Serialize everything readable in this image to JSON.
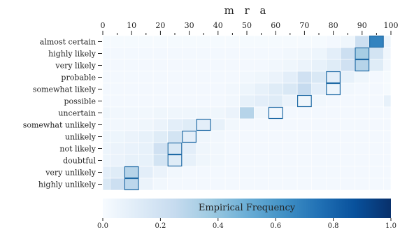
{
  "chart_data": {
    "type": "heatmap",
    "title": "m r a",
    "x_axis": {
      "position": "top",
      "ticks": [
        0,
        10,
        20,
        30,
        40,
        50,
        60,
        70,
        80,
        90,
        100
      ],
      "tick_labels": [
        "0",
        "10",
        "20",
        "30",
        "40",
        "50",
        "60",
        "70",
        "80",
        "90",
        "100"
      ],
      "range": [
        0,
        100
      ],
      "bin_width": 5
    },
    "rows": [
      "almost certain",
      "highly likely",
      "very likely",
      "probable",
      "somewhat likely",
      "possible",
      "uncertain",
      "somewhat unlikely",
      "unlikely",
      "not likely",
      "doubtful",
      "very unlikely",
      "highly unlikely"
    ],
    "bins": [
      0,
      5,
      10,
      15,
      20,
      25,
      30,
      35,
      40,
      45,
      50,
      55,
      60,
      65,
      70,
      75,
      80,
      85,
      90,
      95,
      100
    ],
    "values": [
      [
        0.01,
        0.01,
        0.01,
        0.01,
        0.01,
        0.01,
        0.01,
        0.01,
        0.01,
        0.01,
        0.01,
        0.01,
        0.01,
        0.01,
        0.01,
        0.01,
        0.02,
        0.04,
        0.22,
        0.68,
        0.05
      ],
      [
        0.02,
        0.02,
        0.02,
        0.02,
        0.02,
        0.02,
        0.02,
        0.02,
        0.02,
        0.02,
        0.02,
        0.02,
        0.02,
        0.03,
        0.04,
        0.05,
        0.1,
        0.22,
        0.35,
        0.18,
        0.04
      ],
      [
        0.02,
        0.02,
        0.02,
        0.02,
        0.02,
        0.02,
        0.02,
        0.02,
        0.02,
        0.02,
        0.02,
        0.02,
        0.03,
        0.04,
        0.06,
        0.08,
        0.12,
        0.2,
        0.3,
        0.12,
        0.03
      ],
      [
        0.02,
        0.02,
        0.02,
        0.02,
        0.02,
        0.02,
        0.02,
        0.02,
        0.02,
        0.02,
        0.03,
        0.04,
        0.06,
        0.1,
        0.2,
        0.15,
        0.1,
        0.08,
        0.04,
        0.02,
        0.01
      ],
      [
        0.02,
        0.02,
        0.02,
        0.02,
        0.02,
        0.02,
        0.02,
        0.02,
        0.02,
        0.03,
        0.05,
        0.08,
        0.12,
        0.15,
        0.25,
        0.1,
        0.05,
        0.03,
        0.02,
        0.02,
        0.01
      ],
      [
        0.02,
        0.02,
        0.02,
        0.02,
        0.02,
        0.02,
        0.02,
        0.02,
        0.02,
        0.03,
        0.08,
        0.1,
        0.12,
        0.06,
        0.04,
        0.03,
        0.02,
        0.02,
        0.02,
        0.02,
        0.08
      ],
      [
        0.04,
        0.03,
        0.03,
        0.03,
        0.04,
        0.04,
        0.04,
        0.04,
        0.04,
        0.06,
        0.3,
        0.04,
        0.03,
        0.02,
        0.02,
        0.02,
        0.02,
        0.02,
        0.02,
        0.02,
        0.02
      ],
      [
        0.03,
        0.03,
        0.03,
        0.04,
        0.06,
        0.1,
        0.12,
        0.1,
        0.08,
        0.03,
        0.02,
        0.02,
        0.02,
        0.02,
        0.02,
        0.02,
        0.02,
        0.02,
        0.02,
        0.02,
        0.02
      ],
      [
        0.05,
        0.05,
        0.06,
        0.08,
        0.12,
        0.18,
        0.1,
        0.04,
        0.03,
        0.02,
        0.02,
        0.02,
        0.02,
        0.02,
        0.02,
        0.02,
        0.02,
        0.02,
        0.02,
        0.02,
        0.02
      ],
      [
        0.05,
        0.06,
        0.07,
        0.08,
        0.2,
        0.15,
        0.1,
        0.04,
        0.03,
        0.02,
        0.02,
        0.02,
        0.02,
        0.02,
        0.02,
        0.02,
        0.02,
        0.02,
        0.02,
        0.02,
        0.02
      ],
      [
        0.05,
        0.06,
        0.08,
        0.08,
        0.18,
        0.12,
        0.08,
        0.04,
        0.03,
        0.02,
        0.02,
        0.02,
        0.02,
        0.02,
        0.02,
        0.02,
        0.02,
        0.02,
        0.02,
        0.02,
        0.02
      ],
      [
        0.1,
        0.12,
        0.3,
        0.1,
        0.06,
        0.03,
        0.02,
        0.02,
        0.02,
        0.02,
        0.02,
        0.02,
        0.02,
        0.02,
        0.02,
        0.02,
        0.02,
        0.02,
        0.02,
        0.02,
        0.02
      ],
      [
        0.15,
        0.22,
        0.28,
        0.06,
        0.03,
        0.02,
        0.02,
        0.02,
        0.02,
        0.02,
        0.02,
        0.02,
        0.02,
        0.02,
        0.02,
        0.02,
        0.02,
        0.02,
        0.02,
        0.02,
        0.02
      ]
    ],
    "highlight_bins": [
      19,
      18,
      18,
      16,
      16,
      14,
      12,
      7,
      6,
      5,
      5,
      2,
      2
    ],
    "colorbar": {
      "label": "Empirical Frequency",
      "range": [
        0,
        1
      ],
      "ticks": [
        0.0,
        0.2,
        0.4,
        0.6,
        0.8,
        1.0
      ],
      "tick_labels": [
        "0.0",
        "0.2",
        "0.4",
        "0.6",
        "0.8",
        "1.0"
      ],
      "colormap": [
        "#f7fbff",
        "#deebf7",
        "#c6dbef",
        "#9ecae1",
        "#6baed6",
        "#4292c6",
        "#2171b5",
        "#08519c",
        "#08306b"
      ]
    },
    "highlight_color": "#1f6aa5",
    "grid": false
  }
}
